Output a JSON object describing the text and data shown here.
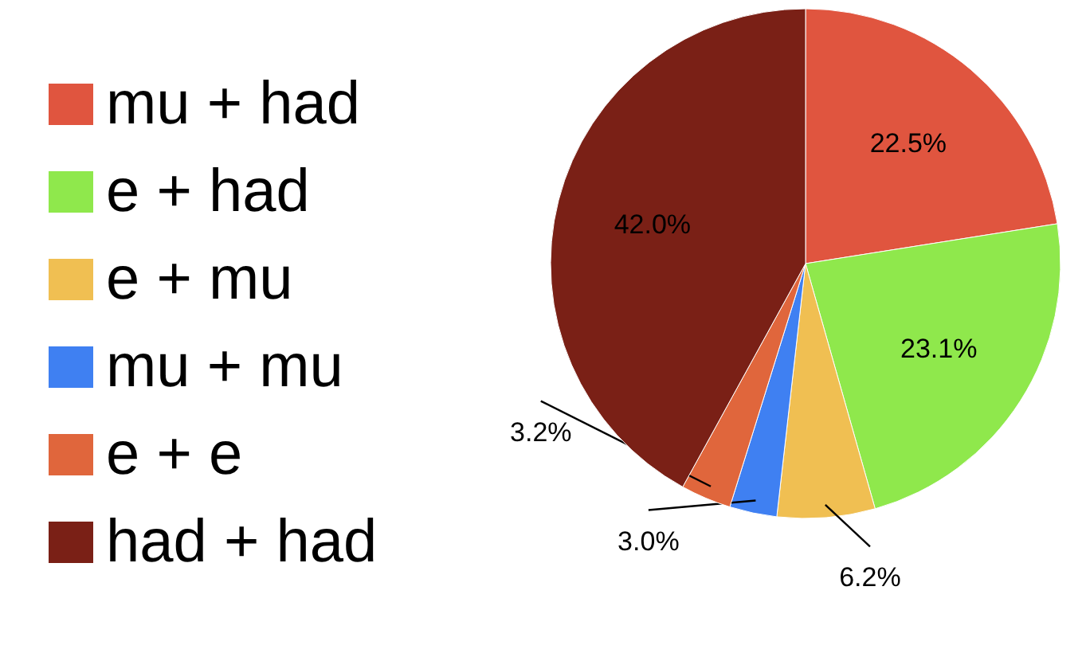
{
  "chart_data": {
    "type": "pie",
    "categories": [
      "mu + had",
      "e + had",
      "e + mu",
      "mu + mu",
      "e + e",
      "had + had"
    ],
    "values": [
      22.5,
      23.1,
      6.2,
      3.0,
      3.2,
      42.0
    ],
    "colors": [
      "#e0553f",
      "#8fe84c",
      "#f0bf52",
      "#3f80f2",
      "#e0663c",
      "#7a2016"
    ],
    "value_labels": [
      "22.5%",
      "23.1%",
      "6.2%",
      "3.0%",
      "3.2%",
      "42.0%"
    ],
    "legend": "left"
  }
}
